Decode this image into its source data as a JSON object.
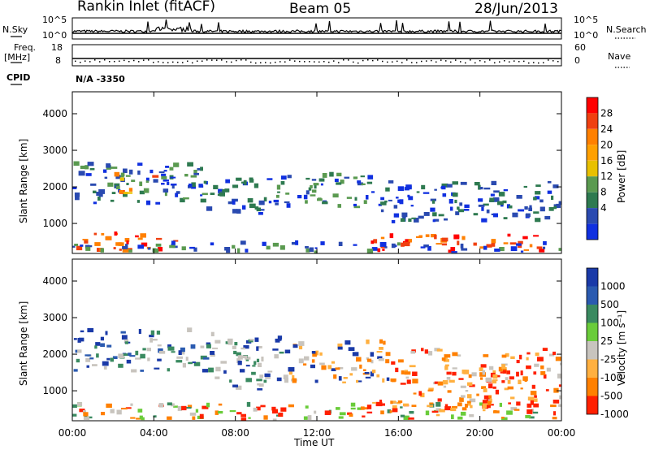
{
  "header": {
    "site": "Rankin Inlet (fitACF)",
    "beam": "Beam 05",
    "date": "28/Jun/2013"
  },
  "noise_panel": {
    "left_label": "N.Sky",
    "right_label": "N.Search",
    "left_ticks": [
      "10^5",
      "10^0"
    ],
    "right_ticks": [
      "10^5",
      "10^0"
    ]
  },
  "freq_panel": {
    "left_label_top": "Freq.",
    "left_label_bottom": "[MHz]",
    "right_label": "Nave",
    "left_ticks": [
      "18",
      "8"
    ],
    "right_ticks": [
      "60",
      "0"
    ]
  },
  "cpid": {
    "label": "CPID",
    "value": "N/A -3350"
  },
  "chart_data": [
    {
      "type": "heatmap",
      "panel": "power",
      "ylabel": "Slant Range [km]",
      "xlabel": "",
      "colorbar_label": "Power [dB]",
      "colorbar_ticks": [
        "28",
        "24",
        "20",
        "16",
        "12",
        "8",
        "4"
      ],
      "colorbar_colors": [
        "#ff0000",
        "#f04010",
        "#ff8000",
        "#ffa000",
        "#e8c000",
        "#5a9a50",
        "#2e7a50",
        "#2a4ab0",
        "#1030e0"
      ],
      "y_ticks": [
        "4000",
        "3000",
        "2000",
        "1000"
      ],
      "ylim": [
        180,
        4600
      ],
      "x_ticks": [
        "00:00",
        "04:00",
        "08:00",
        "12:00",
        "16:00",
        "20:00",
        "00:00"
      ],
      "grid": false
    },
    {
      "type": "heatmap",
      "panel": "velocity",
      "ylabel": "Slant Range [km]",
      "xlabel": "Time UT",
      "colorbar_label": "Velocity [m s⁻¹]",
      "colorbar_ticks": [
        "1000",
        "500",
        "100",
        "25",
        "-25",
        "-100",
        "-500",
        "-1000"
      ],
      "colorbar_colors": [
        "#1a3aa8",
        "#2a5ab0",
        "#3a8a60",
        "#6acc3a",
        "#c8c4be",
        "#ffb040",
        "#ff8000",
        "#ff2000"
      ],
      "y_ticks": [
        "4000",
        "3000",
        "2000",
        "1000"
      ],
      "ylim": [
        180,
        4600
      ],
      "x_ticks": [
        "00:00",
        "04:00",
        "08:00",
        "12:00",
        "16:00",
        "20:00",
        "00:00"
      ],
      "grid": false
    }
  ]
}
